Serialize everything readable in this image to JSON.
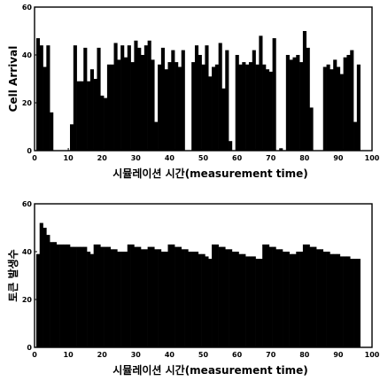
{
  "chart_data": [
    {
      "type": "bar",
      "xlabel": "시뮬레이션 시간(measurement time)",
      "ylabel": "Cell Arrival",
      "xlim": [
        0,
        100
      ],
      "ylim": [
        0,
        60
      ],
      "xticks": [
        0,
        10,
        20,
        30,
        40,
        50,
        60,
        70,
        80,
        90,
        100
      ],
      "yticks": [
        0,
        20,
        40,
        60
      ],
      "x": [
        1,
        2,
        3,
        4,
        5,
        6,
        7,
        8,
        9,
        10,
        11,
        12,
        13,
        14,
        15,
        16,
        17,
        18,
        19,
        20,
        21,
        22,
        23,
        24,
        25,
        26,
        27,
        28,
        29,
        30,
        31,
        32,
        33,
        34,
        35,
        36,
        37,
        38,
        39,
        40,
        41,
        42,
        43,
        44,
        45,
        46,
        47,
        48,
        49,
        50,
        51,
        52,
        53,
        54,
        55,
        56,
        57,
        58,
        59,
        60,
        61,
        62,
        63,
        64,
        65,
        66,
        67,
        68,
        69,
        70,
        71,
        72,
        73,
        74,
        75,
        76,
        77,
        78,
        79,
        80,
        81,
        82,
        83,
        84,
        85,
        86,
        87,
        88,
        89,
        90,
        91,
        92,
        93,
        94,
        95,
        96
      ],
      "values": [
        47,
        44,
        35,
        44,
        16,
        0,
        0,
        0,
        0,
        0,
        11,
        44,
        29,
        29,
        43,
        29,
        34,
        30,
        43,
        23,
        22,
        36,
        36,
        45,
        38,
        44,
        39,
        44,
        37,
        46,
        43,
        40,
        44,
        46,
        38,
        12,
        36,
        43,
        34,
        37,
        42,
        37,
        35,
        42,
        0,
        0,
        37,
        44,
        40,
        36,
        44,
        31,
        35,
        36,
        45,
        26,
        42,
        4,
        0,
        40,
        36,
        37,
        36,
        37,
        42,
        36,
        48,
        36,
        34,
        33,
        47,
        0,
        1,
        0,
        40,
        38,
        39,
        40,
        37,
        50,
        43,
        18,
        0,
        0,
        0,
        35,
        36,
        34,
        38,
        35,
        32,
        39,
        40,
        42,
        12,
        36
      ]
    },
    {
      "type": "bar",
      "xlabel": "시뮬레이션 시간(measurement time)",
      "ylabel": "토큰 발생수",
      "xlim": [
        0,
        100
      ],
      "ylim": [
        0,
        60
      ],
      "xticks": [
        0,
        10,
        20,
        30,
        40,
        50,
        60,
        70,
        80,
        90,
        100
      ],
      "yticks": [
        0,
        20,
        40,
        60
      ],
      "x": [
        1,
        2,
        3,
        4,
        5,
        6,
        7,
        8,
        9,
        10,
        11,
        12,
        13,
        14,
        15,
        16,
        17,
        18,
        19,
        20,
        21,
        22,
        23,
        24,
        25,
        26,
        27,
        28,
        29,
        30,
        31,
        32,
        33,
        34,
        35,
        36,
        37,
        38,
        39,
        40,
        41,
        42,
        43,
        44,
        45,
        46,
        47,
        48,
        49,
        50,
        51,
        52,
        53,
        54,
        55,
        56,
        57,
        58,
        59,
        60,
        61,
        62,
        63,
        64,
        65,
        66,
        67,
        68,
        69,
        70,
        71,
        72,
        73,
        74,
        75,
        76,
        77,
        78,
        79,
        80,
        81,
        82,
        83,
        84,
        85,
        86,
        87,
        88,
        89,
        90,
        91,
        92,
        93,
        94,
        95,
        96
      ],
      "values": [
        39,
        52,
        50,
        47,
        44,
        44,
        43,
        43,
        43,
        43,
        42,
        42,
        42,
        42,
        42,
        40,
        39,
        43,
        43,
        42,
        42,
        42,
        41,
        41,
        40,
        40,
        40,
        43,
        43,
        42,
        42,
        41,
        41,
        42,
        42,
        41,
        41,
        40,
        40,
        43,
        43,
        42,
        42,
        41,
        41,
        40,
        40,
        40,
        39,
        39,
        38,
        37,
        43,
        43,
        42,
        42,
        41,
        41,
        40,
        40,
        39,
        39,
        38,
        38,
        38,
        37,
        37,
        43,
        43,
        42,
        42,
        41,
        41,
        40,
        40,
        39,
        39,
        40,
        40,
        43,
        43,
        42,
        42,
        41,
        41,
        40,
        40,
        39,
        39,
        39,
        38,
        38,
        38,
        37,
        37,
        37
      ]
    }
  ]
}
